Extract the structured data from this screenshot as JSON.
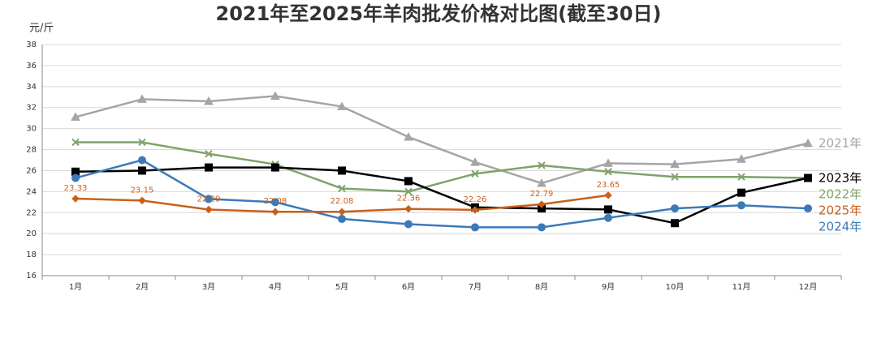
{
  "chart_data": {
    "type": "line",
    "title": "2021年至2025年羊肉批发价格对比图(截至30日)",
    "y_label": "元/斤",
    "categories": [
      "1月",
      "2月",
      "3月",
      "4月",
      "5月",
      "6月",
      "7月",
      "8月",
      "9月",
      "10月",
      "11月",
      "12月"
    ],
    "ylim": [
      16,
      38
    ],
    "yticks": [
      16,
      18,
      20,
      22,
      24,
      26,
      28,
      30,
      32,
      34,
      36,
      38
    ],
    "grid": true,
    "series": [
      {
        "name": "2021年",
        "color": "#a5a5a5",
        "marker": "triangle",
        "values": [
          31.1,
          32.8,
          32.6,
          33.1,
          32.1,
          29.2,
          26.8,
          24.8,
          26.7,
          26.6,
          27.1,
          28.6
        ]
      },
      {
        "name": "2022年",
        "color": "#7da46a",
        "marker": "x",
        "values": [
          28.7,
          28.7,
          27.6,
          26.6,
          24.3,
          24.0,
          25.7,
          26.5,
          25.9,
          25.4,
          25.4,
          25.3
        ]
      },
      {
        "name": "2023年",
        "color": "#000000",
        "marker": "square",
        "values": [
          25.9,
          26.0,
          26.3,
          26.3,
          26.0,
          25.0,
          22.5,
          22.4,
          22.3,
          21.0,
          23.9,
          25.3
        ]
      },
      {
        "name": "2024年",
        "color": "#3b7ab8",
        "marker": "circle",
        "values": [
          25.3,
          27.0,
          23.3,
          23.0,
          21.4,
          20.9,
          20.6,
          20.6,
          21.5,
          22.4,
          22.7,
          22.4
        ]
      },
      {
        "name": "2025年",
        "color": "#c8601c",
        "marker": "diamond",
        "show_labels": true,
        "values": [
          23.33,
          23.15,
          22.29,
          22.08,
          22.08,
          22.36,
          22.26,
          22.79,
          23.65,
          null,
          null,
          null
        ]
      }
    ]
  }
}
